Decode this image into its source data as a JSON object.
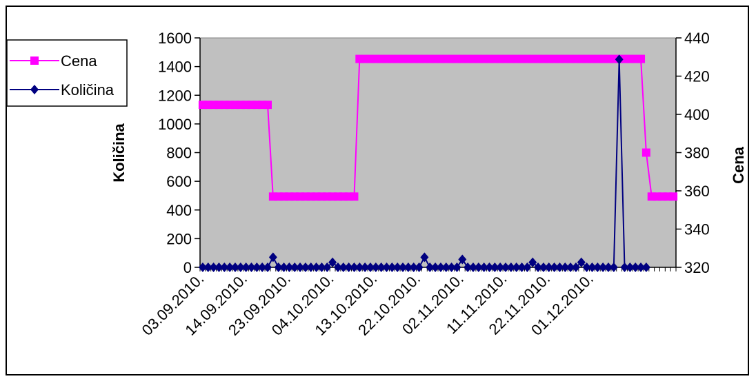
{
  "chart_data": {
    "type": "line",
    "x_categories_visible": [
      "03.09.2010.",
      "14.09.2010.",
      "23.09.2010.",
      "04.10.2010.",
      "13.10.2010.",
      "22.10.2010.",
      "02.11.2010.",
      "11.11.2010.",
      "22.11.2010.",
      "01.12.2010."
    ],
    "ylabel_left": "Količina",
    "ylabel_right": "Cena",
    "ylim_left": [
      0,
      1600
    ],
    "ylim_right": [
      320,
      440
    ],
    "yticks_left": [
      0,
      200,
      400,
      600,
      800,
      1000,
      1200,
      1400,
      1600
    ],
    "yticks_right": [
      320,
      340,
      360,
      380,
      400,
      420,
      440
    ],
    "legend_position": "top-left",
    "grid": false,
    "plot_background": "#c0c0c0",
    "series": [
      {
        "name": "Cena",
        "axis": "right",
        "color": "#ff00ff",
        "marker": "square",
        "values": [
          405,
          405,
          405,
          405,
          405,
          405,
          405,
          405,
          405,
          405,
          405,
          405,
          405,
          357,
          357,
          357,
          357,
          357,
          357,
          357,
          357,
          357,
          357,
          357,
          357,
          357,
          357,
          357,
          357,
          429,
          429,
          429,
          429,
          429,
          429,
          429,
          429,
          429,
          429,
          429,
          429,
          429,
          429,
          429,
          429,
          429,
          429,
          429,
          429,
          429,
          429,
          429,
          429,
          429,
          429,
          429,
          429,
          429,
          429,
          429,
          429,
          429,
          429,
          429,
          429,
          429,
          429,
          429,
          429,
          429,
          429,
          429,
          429,
          429,
          429,
          429,
          429,
          429,
          429,
          429,
          429,
          429,
          380,
          357,
          357,
          357,
          357,
          357
        ]
      },
      {
        "name": "Količina",
        "axis": "left",
        "color": "#000080",
        "marker": "diamond",
        "values": [
          0,
          0,
          0,
          0,
          0,
          0,
          0,
          0,
          0,
          0,
          0,
          0,
          0,
          70,
          0,
          0,
          0,
          0,
          0,
          0,
          0,
          0,
          0,
          0,
          35,
          0,
          0,
          0,
          0,
          0,
          0,
          0,
          0,
          0,
          0,
          0,
          0,
          0,
          0,
          0,
          0,
          70,
          0,
          0,
          0,
          0,
          0,
          0,
          55,
          0,
          0,
          0,
          0,
          0,
          0,
          0,
          0,
          0,
          0,
          0,
          0,
          35,
          0,
          0,
          0,
          0,
          0,
          0,
          0,
          0,
          35,
          0,
          0,
          0,
          0,
          0,
          0,
          1450,
          0,
          0,
          0,
          0,
          0
        ]
      }
    ]
  }
}
